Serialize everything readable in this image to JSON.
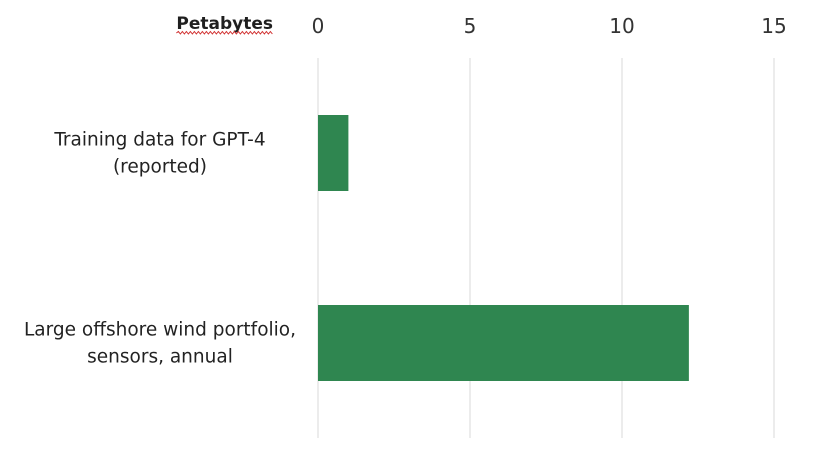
{
  "chart_data": {
    "type": "bar",
    "orientation": "horizontal",
    "title": "",
    "xlabel": "Petabytes",
    "ylabel": "",
    "categories": [
      [
        "Training data for GPT-4",
        "(reported)"
      ],
      [
        "Large offshore wind portfolio,",
        "sensors, annual"
      ]
    ],
    "values": [
      1,
      12.2
    ],
    "xlim": [
      0,
      15
    ],
    "xticks": [
      "0",
      "5",
      "10",
      "15"
    ],
    "xtick_values": [
      0,
      5,
      10,
      15
    ],
    "grid": true,
    "legend": "none",
    "bar_color": "#2f8650"
  }
}
